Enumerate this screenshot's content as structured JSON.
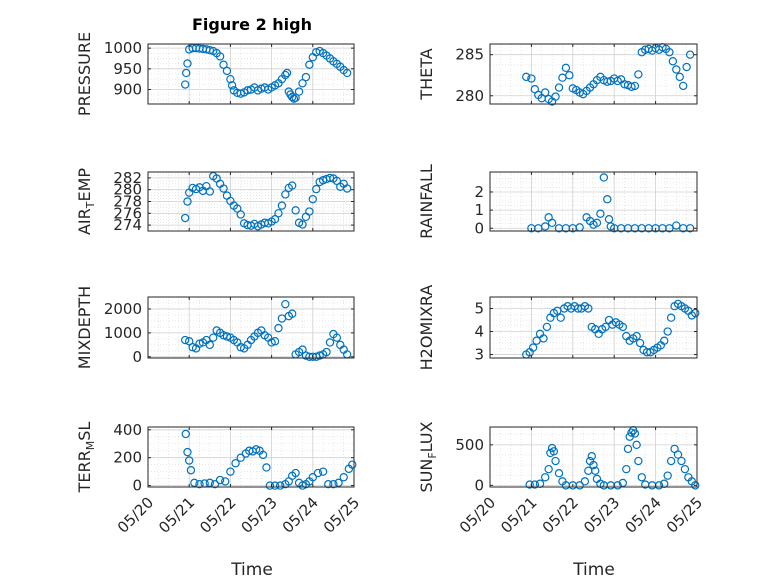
{
  "figure": {
    "title": "Figure 2 high",
    "xlabel": "Time",
    "x_ticks": [
      "05/20",
      "05/21",
      "05/22",
      "05/23",
      "05/24",
      "05/25"
    ],
    "marker_color": "#0072bd"
  },
  "chart_data": [
    {
      "type": "scatter",
      "ylabel": "PRESSURE",
      "ylabel_sub": "",
      "ylim": [
        865,
        1010
      ],
      "yticks": [
        900,
        950,
        1000
      ],
      "grid": true,
      "x": [
        "05/20 21:40",
        "05/20 22:15",
        "05/20 23:00",
        "05/21 00:00",
        "05/21 02:00",
        "05/21 04:00",
        "05/21 06:00",
        "05/21 08:00",
        "05/21 10:00",
        "05/21 12:00",
        "05/21 14:00",
        "05/21 16:00",
        "05/21 18:00",
        "05/21 20:00",
        "05/21 22:00",
        "05/22 00:00",
        "05/22 01:00",
        "05/22 02:00",
        "05/22 04:00",
        "05/22 06:00",
        "05/22 08:00",
        "05/22 10:00",
        "05/22 12:00",
        "05/22 14:00",
        "05/22 16:00",
        "05/22 18:00",
        "05/22 20:00",
        "05/22 22:00",
        "05/23 00:00",
        "05/23 02:00",
        "05/23 04:00",
        "05/23 06:00",
        "05/23 08:00",
        "05/23 09:00",
        "05/23 10:00",
        "05/23 11:00",
        "05/23 12:00",
        "05/23 13:00",
        "05/23 14:00",
        "05/23 16:00",
        "05/23 18:00",
        "05/23 20:00",
        "05/23 22:00",
        "05/24 00:00",
        "05/24 02:00",
        "05/24 04:00",
        "05/24 06:00",
        "05/24 08:00",
        "05/24 10:00",
        "05/24 12:00",
        "05/24 14:00",
        "05/24 16:00",
        "05/24 18:00",
        "05/24 20:00"
      ],
      "values": [
        912,
        940,
        963,
        997,
        1000,
        1000,
        999,
        998,
        997,
        995,
        993,
        988,
        980,
        960,
        945,
        925,
        910,
        898,
        892,
        890,
        893,
        898,
        900,
        905,
        898,
        902,
        905,
        900,
        905,
        910,
        915,
        925,
        935,
        940,
        895,
        888,
        882,
        878,
        880,
        895,
        915,
        930,
        960,
        978,
        990,
        993,
        988,
        982,
        975,
        968,
        962,
        955,
        947,
        940
      ]
    },
    {
      "type": "scatter",
      "ylabel": "THETA",
      "ylabel_sub": "",
      "ylim": [
        279,
        286.3
      ],
      "yticks": [
        280,
        285
      ],
      "grid": true,
      "x": [
        "05/20 21:00",
        "05/21 00:00",
        "05/21 02:00",
        "05/21 04:00",
        "05/21 06:00",
        "05/21 08:00",
        "05/21 10:00",
        "05/21 12:00",
        "05/21 14:00",
        "05/21 16:00",
        "05/21 18:00",
        "05/21 20:00",
        "05/21 22:00",
        "05/22 00:00",
        "05/22 02:00",
        "05/22 04:00",
        "05/22 06:00",
        "05/22 08:00",
        "05/22 10:00",
        "05/22 12:00",
        "05/22 14:00",
        "05/22 16:00",
        "05/22 18:00",
        "05/22 20:00",
        "05/22 22:00",
        "05/23 00:00",
        "05/23 02:00",
        "05/23 04:00",
        "05/23 06:00",
        "05/23 08:00",
        "05/23 10:00",
        "05/23 12:00",
        "05/23 14:00",
        "05/23 16:00",
        "05/23 18:00",
        "05/23 20:00",
        "05/23 22:00",
        "05/24 00:00",
        "05/24 02:00",
        "05/24 04:00",
        "05/24 06:00",
        "05/24 08:00",
        "05/24 10:00",
        "05/24 12:00",
        "05/24 14:00",
        "05/24 16:00",
        "05/24 18:00",
        "05/24 20:00"
      ],
      "values": [
        282.3,
        282.1,
        280.8,
        280.1,
        279.7,
        280.4,
        279.6,
        279.3,
        279.9,
        281.0,
        282.2,
        283.4,
        282.5,
        280.9,
        280.7,
        280.4,
        280.2,
        280.6,
        281.0,
        281.4,
        281.9,
        282.3,
        281.9,
        281.7,
        281.8,
        282.1,
        281.8,
        282.0,
        281.4,
        281.3,
        281.1,
        281.2,
        282.6,
        285.3,
        285.6,
        285.7,
        285.5,
        285.8,
        285.6,
        285.9,
        285.7,
        285.3,
        284.2,
        283.2,
        282.3,
        281.2,
        283.5,
        285.0
      ]
    },
    {
      "type": "scatter",
      "ylabel": "AIR",
      "ylabel_sub": "T",
      "ylabel_after": "EMP",
      "ylim": [
        273,
        283
      ],
      "yticks": [
        274,
        276,
        278,
        280,
        282
      ],
      "grid": true,
      "x": [
        "05/20 21:40",
        "05/20 23:00",
        "05/21 00:00",
        "05/21 02:00",
        "05/21 04:00",
        "05/21 06:00",
        "05/21 08:00",
        "05/21 10:00",
        "05/21 12:00",
        "05/21 14:00",
        "05/21 16:00",
        "05/21 18:00",
        "05/21 20:00",
        "05/21 22:00",
        "05/22 00:00",
        "05/22 02:00",
        "05/22 04:00",
        "05/22 06:00",
        "05/22 08:00",
        "05/22 10:00",
        "05/22 12:00",
        "05/22 14:00",
        "05/22 16:00",
        "05/22 18:00",
        "05/22 20:00",
        "05/22 22:00",
        "05/23 00:00",
        "05/23 02:00",
        "05/23 04:00",
        "05/23 06:00",
        "05/23 08:00",
        "05/23 10:00",
        "05/23 12:00",
        "05/23 14:00",
        "05/23 16:00",
        "05/23 18:00",
        "05/23 20:00",
        "05/23 22:00",
        "05/24 00:00",
        "05/24 02:00",
        "05/24 04:00",
        "05/24 06:00",
        "05/24 08:00",
        "05/24 10:00",
        "05/24 12:00",
        "05/24 14:00",
        "05/24 16:00",
        "05/24 18:00",
        "05/24 20:00"
      ],
      "values": [
        275.2,
        278.0,
        279.5,
        280.3,
        280.1,
        280.4,
        279.8,
        280.6,
        279.7,
        282.3,
        281.9,
        281.0,
        280.2,
        279.0,
        278.1,
        277.3,
        276.8,
        275.8,
        274.3,
        274.0,
        273.9,
        274.2,
        273.8,
        274.1,
        274.4,
        274.3,
        274.6,
        275.0,
        276.0,
        277.3,
        279.2,
        280.3,
        280.7,
        276.5,
        274.4,
        274.1,
        275.4,
        276.3,
        278.4,
        280.1,
        281.3,
        281.6,
        281.8,
        282.0,
        281.9,
        281.5,
        280.5,
        281.0,
        280.2
      ]
    },
    {
      "type": "scatter",
      "ylabel": "RAINFALL",
      "ylabel_sub": "",
      "ylim": [
        -0.15,
        3.1
      ],
      "yticks": [
        0,
        1,
        2
      ],
      "grid": true,
      "x": [
        "05/21 00:00",
        "05/21 04:00",
        "05/21 08:00",
        "05/21 10:00",
        "05/21 12:00",
        "05/21 16:00",
        "05/21 20:00",
        "05/22 00:00",
        "05/22 04:00",
        "05/22 08:00",
        "05/22 10:00",
        "05/22 12:00",
        "05/22 14:00",
        "05/22 16:00",
        "05/22 18:00",
        "05/22 20:00",
        "05/22 21:00",
        "05/22 22:00",
        "05/23 00:00",
        "05/23 04:00",
        "05/23 08:00",
        "05/23 12:00",
        "05/23 16:00",
        "05/23 20:00",
        "05/24 00:00",
        "05/24 04:00",
        "05/24 08:00",
        "05/24 12:00",
        "05/24 16:00",
        "05/24 20:00"
      ],
      "values": [
        0,
        0,
        0.1,
        0.6,
        0.3,
        0,
        0,
        0,
        0.05,
        0.6,
        0.4,
        0.2,
        0.3,
        0.8,
        2.8,
        1.6,
        0.5,
        0.1,
        0,
        0,
        0,
        0,
        0,
        0,
        0,
        0,
        0,
        0.15,
        0,
        0
      ]
    },
    {
      "type": "scatter",
      "ylabel": "MIXDEPTH",
      "ylabel_sub": "",
      "ylim": [
        -50,
        2500
      ],
      "yticks": [
        0,
        1000,
        2000
      ],
      "grid": true,
      "x": [
        "05/20 21:40",
        "05/21 00:00",
        "05/21 02:00",
        "05/21 04:00",
        "05/21 06:00",
        "05/21 08:00",
        "05/21 10:00",
        "05/21 12:00",
        "05/21 14:00",
        "05/21 16:00",
        "05/21 18:00",
        "05/21 20:00",
        "05/21 22:00",
        "05/22 00:00",
        "05/22 02:00",
        "05/22 04:00",
        "05/22 06:00",
        "05/22 08:00",
        "05/22 10:00",
        "05/22 12:00",
        "05/22 14:00",
        "05/22 16:00",
        "05/22 18:00",
        "05/22 20:00",
        "05/22 22:00",
        "05/23 00:00",
        "05/23 02:00",
        "05/23 04:00",
        "05/23 06:00",
        "05/23 08:00",
        "05/23 10:00",
        "05/23 12:00",
        "05/23 14:00",
        "05/23 16:00",
        "05/23 18:00",
        "05/23 20:00",
        "05/23 22:00",
        "05/24 00:00",
        "05/24 02:00",
        "05/24 04:00",
        "05/24 06:00",
        "05/24 08:00",
        "05/24 10:00",
        "05/24 12:00",
        "05/24 14:00",
        "05/24 16:00",
        "05/24 18:00",
        "05/24 20:00"
      ],
      "values": [
        700,
        650,
        400,
        350,
        550,
        600,
        700,
        500,
        800,
        1100,
        1000,
        900,
        850,
        800,
        700,
        600,
        400,
        350,
        500,
        700,
        850,
        1000,
        1100,
        900,
        800,
        600,
        650,
        1200,
        1600,
        2200,
        1700,
        1800,
        100,
        200,
        300,
        50,
        0,
        0,
        0,
        50,
        100,
        200,
        600,
        950,
        800,
        500,
        300,
        100
      ]
    },
    {
      "type": "scatter",
      "ylabel": "H2OMIXRA",
      "ylabel_sub": "",
      "ylim": [
        2.85,
        5.5
      ],
      "yticks": [
        3,
        4,
        5
      ],
      "grid": true,
      "x": [
        "05/20 21:00",
        "05/20 23:00",
        "05/21 01:00",
        "05/21 03:00",
        "05/21 05:00",
        "05/21 07:00",
        "05/21 09:00",
        "05/21 11:00",
        "05/21 13:00",
        "05/21 15:00",
        "05/21 17:00",
        "05/21 19:00",
        "05/21 21:00",
        "05/21 23:00",
        "05/22 01:00",
        "05/22 03:00",
        "05/22 05:00",
        "05/22 07:00",
        "05/22 09:00",
        "05/22 11:00",
        "05/22 13:00",
        "05/22 15:00",
        "05/22 17:00",
        "05/22 19:00",
        "05/22 21:00",
        "05/22 23:00",
        "05/23 01:00",
        "05/23 03:00",
        "05/23 05:00",
        "05/23 07:00",
        "05/23 09:00",
        "05/23 11:00",
        "05/23 13:00",
        "05/23 15:00",
        "05/23 17:00",
        "05/23 19:00",
        "05/23 21:00",
        "05/23 23:00",
        "05/24 01:00",
        "05/24 03:00",
        "05/24 05:00",
        "05/24 07:00",
        "05/24 09:00",
        "05/24 11:00",
        "05/24 13:00",
        "05/24 15:00",
        "05/24 17:00",
        "05/24 19:00",
        "05/24 21:00",
        "05/24 23:00"
      ],
      "values": [
        3.0,
        3.1,
        3.3,
        3.6,
        3.9,
        3.7,
        4.2,
        4.6,
        4.8,
        4.9,
        4.6,
        5.0,
        5.1,
        5.0,
        5.1,
        5.0,
        5.0,
        5.1,
        5.0,
        4.2,
        4.1,
        3.9,
        4.1,
        4.2,
        4.5,
        4.3,
        4.4,
        4.3,
        4.2,
        3.8,
        3.6,
        3.7,
        3.8,
        3.5,
        3.2,
        3.1,
        3.1,
        3.2,
        3.3,
        3.4,
        3.6,
        4.0,
        4.6,
        5.1,
        5.2,
        5.1,
        5.0,
        4.9,
        4.7,
        4.8
      ]
    },
    {
      "type": "scatter",
      "ylabel": "TERR",
      "ylabel_sub": "M",
      "ylabel_after": "SL",
      "ylim": [
        -10,
        420
      ],
      "yticks": [
        0,
        200,
        400
      ],
      "grid": true,
      "x": [
        "05/20 22:00",
        "05/20 23:00",
        "05/21 00:00",
        "05/21 01:00",
        "05/21 03:00",
        "05/21 06:00",
        "05/21 09:00",
        "05/21 12:00",
        "05/21 15:00",
        "05/21 18:00",
        "05/21 21:00",
        "05/22 00:00",
        "05/22 03:00",
        "05/22 06:00",
        "05/22 09:00",
        "05/22 11:00",
        "05/22 13:00",
        "05/22 15:00",
        "05/22 17:00",
        "05/22 19:00",
        "05/22 21:00",
        "05/22 23:00",
        "05/23 02:00",
        "05/23 05:00",
        "05/23 08:00",
        "05/23 10:00",
        "05/23 12:00",
        "05/23 14:00",
        "05/23 16:00",
        "05/23 18:00",
        "05/23 20:00",
        "05/23 22:00",
        "05/24 00:00",
        "05/24 03:00",
        "05/24 06:00",
        "05/24 09:00",
        "05/24 12:00",
        "05/24 15:00",
        "05/24 18:00",
        "05/24 21:00",
        "05/24 23:00"
      ],
      "values": [
        370,
        240,
        180,
        110,
        20,
        10,
        15,
        20,
        10,
        40,
        30,
        100,
        160,
        200,
        230,
        250,
        245,
        260,
        250,
        220,
        130,
        0,
        0,
        0,
        10,
        30,
        70,
        90,
        20,
        0,
        10,
        30,
        60,
        90,
        100,
        10,
        10,
        20,
        60,
        120,
        150
      ]
    },
    {
      "type": "scatter",
      "ylabel": "SUN",
      "ylabel_sub": "F",
      "ylabel_after": "LUX",
      "ylim": [
        -20,
        720
      ],
      "yticks": [
        0,
        500
      ],
      "grid": true,
      "x": [
        "05/20 23:00",
        "05/21 02:00",
        "05/21 05:00",
        "05/21 08:00",
        "05/21 10:00",
        "05/21 11:00",
        "05/21 12:00",
        "05/21 13:00",
        "05/21 14:00",
        "05/21 16:00",
        "05/21 18:00",
        "05/21 20:00",
        "05/22 00:00",
        "05/22 04:00",
        "05/22 07:00",
        "05/22 09:00",
        "05/22 10:00",
        "05/22 11:00",
        "05/22 12:00",
        "05/22 13:00",
        "05/22 14:00",
        "05/22 16:00",
        "05/22 18:00",
        "05/22 22:00",
        "05/23 02:00",
        "05/23 05:00",
        "05/23 07:00",
        "05/23 08:00",
        "05/23 09:00",
        "05/23 10:00",
        "05/23 11:00",
        "05/23 12:00",
        "05/23 13:00",
        "05/23 14:00",
        "05/23 16:00",
        "05/23 18:00",
        "05/23 22:00",
        "05/24 02:00",
        "05/24 05:00",
        "05/24 07:00",
        "05/24 09:00",
        "05/24 11:00",
        "05/24 13:00",
        "05/24 15:00",
        "05/24 17:00",
        "05/24 19:00",
        "05/24 21:00",
        "05/24 23:00"
      ],
      "values": [
        10,
        10,
        20,
        100,
        200,
        400,
        460,
        420,
        300,
        150,
        50,
        0,
        0,
        0,
        50,
        180,
        300,
        360,
        250,
        180,
        80,
        20,
        0,
        0,
        0,
        30,
        200,
        450,
        600,
        650,
        680,
        640,
        500,
        300,
        100,
        10,
        0,
        0,
        20,
        120,
        300,
        450,
        380,
        300,
        200,
        100,
        50,
        0
      ]
    }
  ]
}
